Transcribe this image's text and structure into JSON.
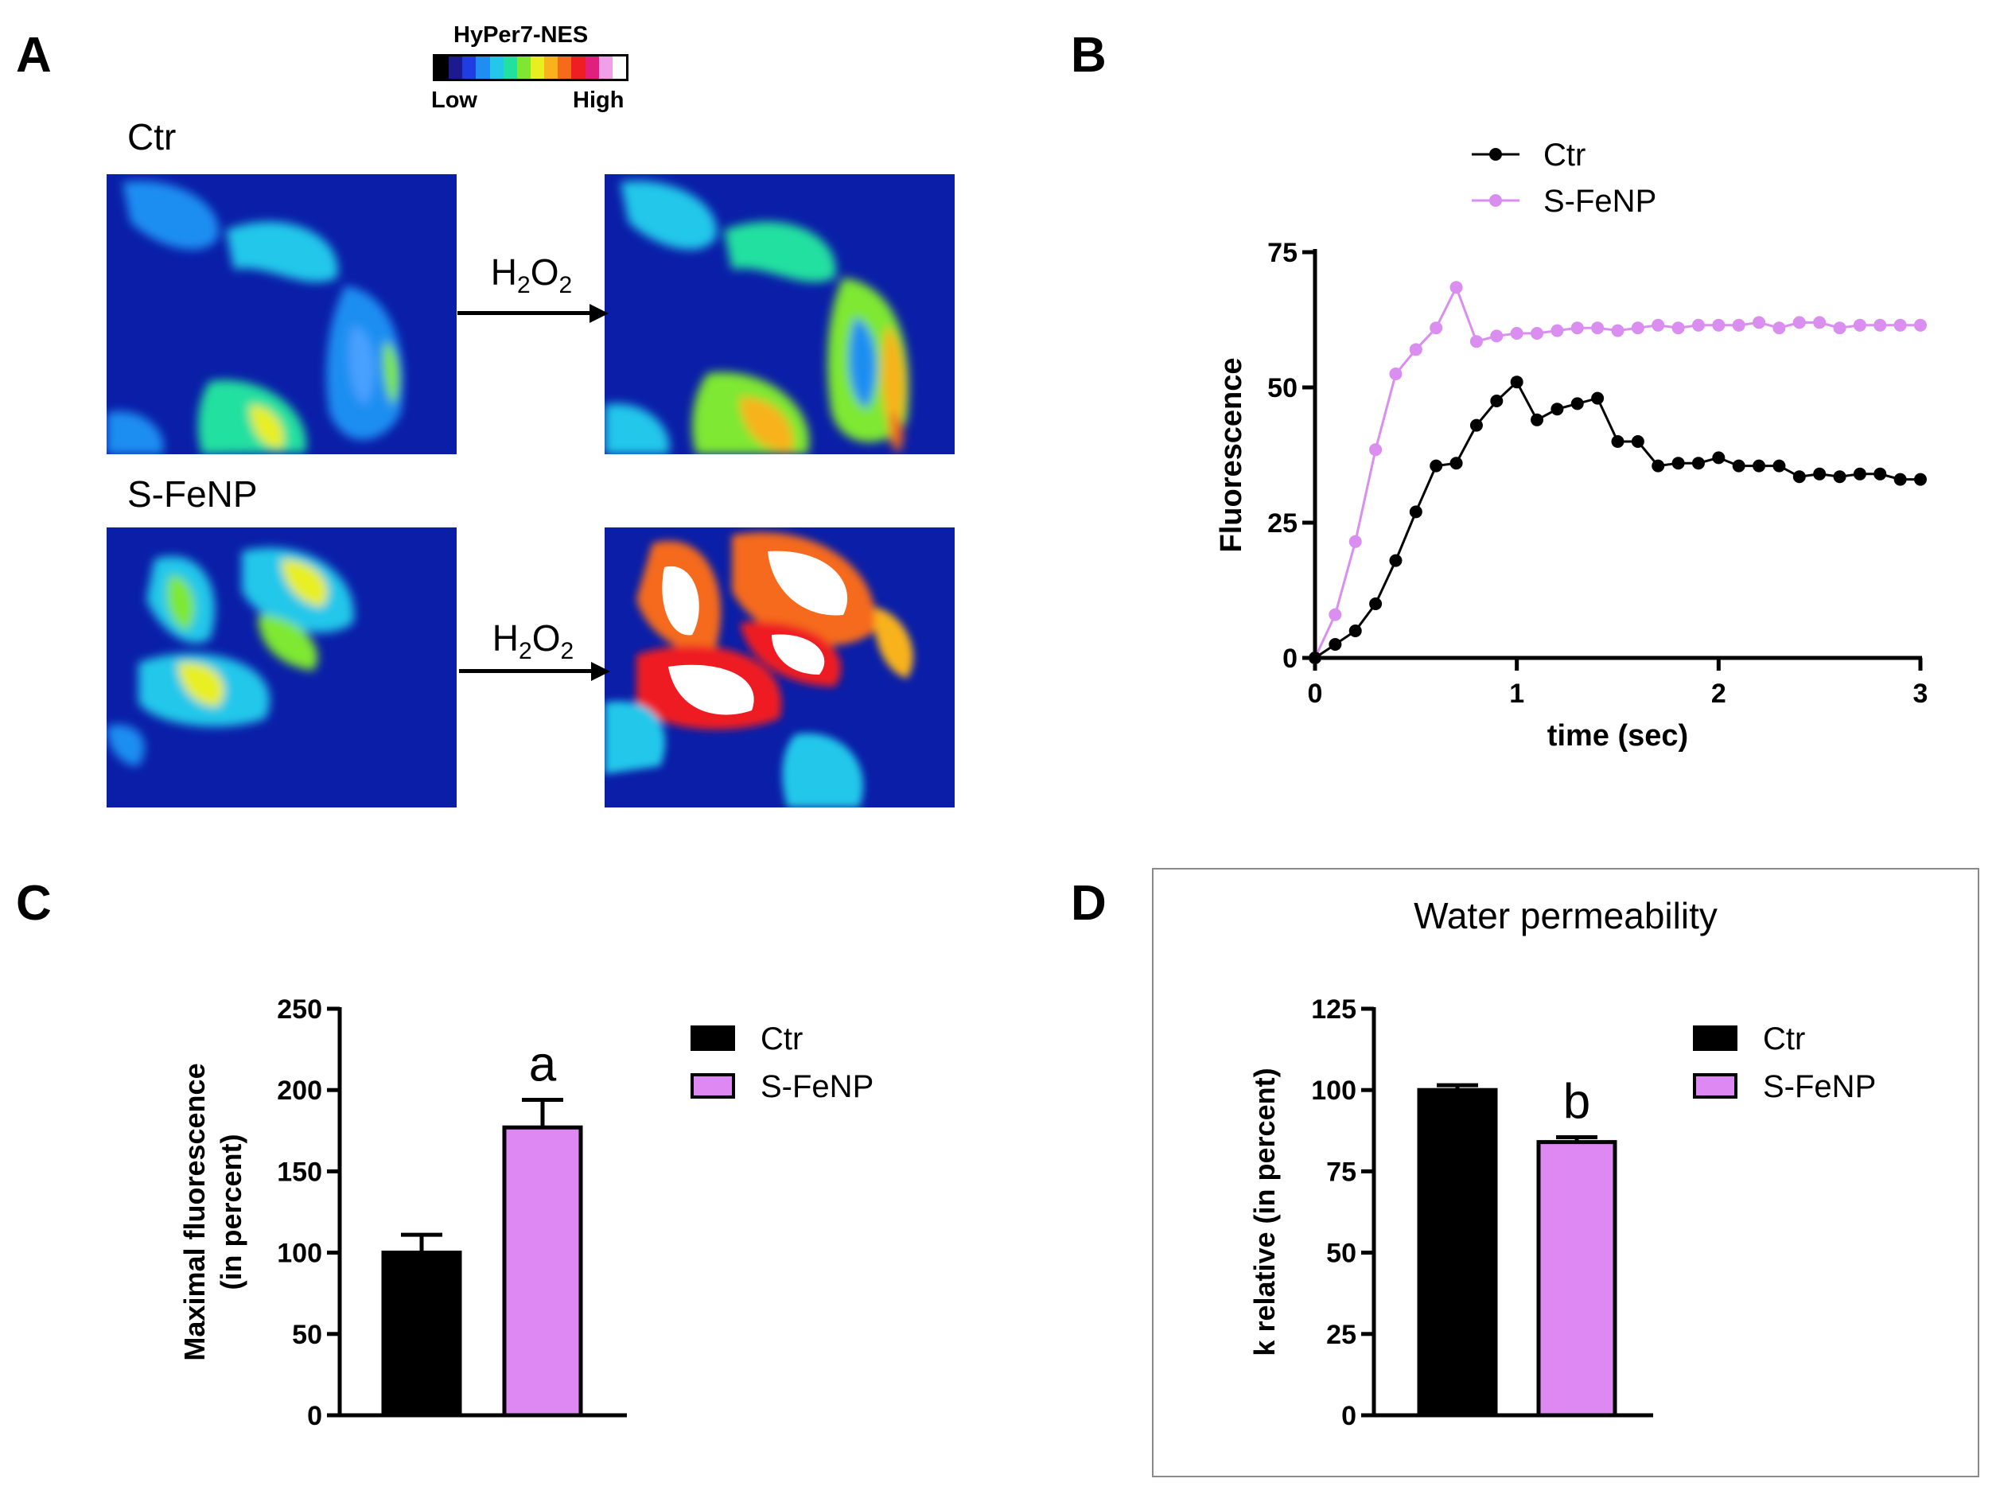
{
  "panelA": {
    "letter": "A",
    "colorbar": {
      "title": "HyPer7-NES",
      "low": "Low",
      "high": "High",
      "colors": [
        "#000000",
        "#1b1b8f",
        "#1f3de0",
        "#1f8ef2",
        "#22c7ea",
        "#22e0a0",
        "#7ee830",
        "#e8ef20",
        "#f8b21c",
        "#f56b1a",
        "#ee1f23",
        "#e0207c",
        "#f0a0e8",
        "#ffffff"
      ]
    },
    "ctr_label": "Ctr",
    "sfenp_label": "S-FeNP",
    "arrow_label_main": "H",
    "arrow_sub1": "2",
    "arrow_mid": "O",
    "arrow_sub2": "2"
  },
  "panelB": {
    "letter": "B",
    "legend_ctr": "Ctr",
    "legend_sfenp": "S-FeNP"
  },
  "panelC": {
    "letter": "C",
    "legend_ctr": "Ctr",
    "legend_sfenp": "S-FeNP"
  },
  "panelD": {
    "letter": "D",
    "title": "Water permeability",
    "legend_ctr": "Ctr",
    "legend_sfenp": "S-FeNP"
  },
  "chart_data": [
    {
      "id": "B",
      "type": "line",
      "xlabel": "time (sec)",
      "ylabel": "Fluorescence",
      "xlim": [
        0,
        3
      ],
      "ylim": [
        0,
        75
      ],
      "xticks": [
        "0",
        "1",
        "2",
        "3"
      ],
      "yticks": [
        "0",
        "25",
        "50",
        "75"
      ],
      "legend_position": "top-left",
      "series": [
        {
          "name": "Ctr",
          "color": "#000000",
          "x": [
            0,
            0.1,
            0.2,
            0.3,
            0.4,
            0.5,
            0.6,
            0.7,
            0.8,
            0.9,
            1.0,
            1.1,
            1.2,
            1.3,
            1.4,
            1.5,
            1.6,
            1.7,
            1.8,
            1.9,
            2.0,
            2.1,
            2.2,
            2.3,
            2.4,
            2.5,
            2.6,
            2.7,
            2.8,
            2.9,
            3.0
          ],
          "y": [
            0,
            2.5,
            5,
            10,
            18,
            27,
            35.5,
            36,
            43,
            47.5,
            51,
            44,
            46,
            47,
            48,
            40,
            40,
            35.5,
            36,
            36,
            37,
            35.5,
            35.5,
            35.5,
            33.5,
            34,
            33.5,
            34,
            34,
            33,
            33
          ]
        },
        {
          "name": "S-FeNP",
          "color": "#d98ef0",
          "x": [
            0,
            0.1,
            0.2,
            0.3,
            0.4,
            0.5,
            0.6,
            0.7,
            0.8,
            0.9,
            1.0,
            1.1,
            1.2,
            1.3,
            1.4,
            1.5,
            1.6,
            1.7,
            1.8,
            1.9,
            2.0,
            2.1,
            2.2,
            2.3,
            2.4,
            2.5,
            2.6,
            2.7,
            2.8,
            2.9,
            3.0
          ],
          "y": [
            0,
            8,
            21.5,
            38.5,
            52.5,
            57,
            61,
            68.5,
            58.5,
            59.5,
            60,
            60,
            60.5,
            61,
            61,
            60.5,
            61,
            61.5,
            61,
            61.5,
            61.5,
            61.5,
            62,
            61,
            62,
            62,
            61,
            61.5,
            61.5,
            61.5,
            61.5
          ]
        }
      ]
    },
    {
      "id": "C",
      "type": "bar",
      "categories": [
        "Ctr",
        "S-FeNP"
      ],
      "values": [
        100,
        177
      ],
      "errors": [
        11,
        17
      ],
      "colors": [
        "#000000",
        "#dd88f3"
      ],
      "ylabel_line1": "Maximal fluorescence",
      "ylabel_line2": "(in percent)",
      "ylim": [
        0,
        250
      ],
      "yticks": [
        "0",
        "50",
        "100",
        "150",
        "200",
        "250"
      ],
      "annotations": [
        "",
        "a"
      ],
      "legend_position": "right"
    },
    {
      "id": "D",
      "type": "bar",
      "categories": [
        "Ctr",
        "S-FeNP"
      ],
      "values": [
        100,
        84
      ],
      "errors": [
        1.5,
        1.5
      ],
      "colors": [
        "#000000",
        "#dd88f3"
      ],
      "ylabel": "k relative (in percent)",
      "ylim": [
        0,
        125
      ],
      "yticks": [
        "0",
        "25",
        "50",
        "75",
        "100",
        "125"
      ],
      "annotations": [
        "",
        "b"
      ],
      "legend_position": "right"
    }
  ]
}
